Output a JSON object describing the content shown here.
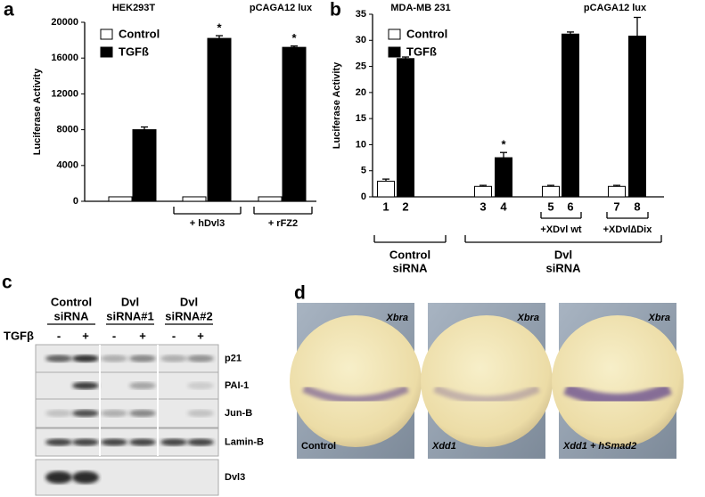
{
  "panels": [
    "a",
    "b",
    "c",
    "d"
  ],
  "chart_data": [
    {
      "type": "bar",
      "titles": [
        "HEK293T",
        "pCAGA12 lux"
      ],
      "y_label": "Luciferase Activity",
      "ylim": [
        0,
        20000
      ],
      "yticks": [
        0,
        4000,
        8000,
        12000,
        16000,
        20000
      ],
      "group_labels": [
        null,
        "+ hDvl3",
        "+ rFZ2"
      ],
      "series": [
        {
          "name": "Control",
          "color": "#ffffff",
          "values": [
            500,
            500,
            500
          ]
        },
        {
          "name": "TGFß",
          "color": "#000000",
          "values": [
            8000,
            18200,
            17200
          ],
          "errors": [
            300,
            300,
            150
          ],
          "significance": [
            null,
            "*",
            "*"
          ]
        }
      ]
    },
    {
      "type": "bar",
      "titles": [
        "MDA-MB 231",
        "pCAGA12 lux"
      ],
      "y_label": "Luciferase Activity",
      "ylim": [
        0,
        35
      ],
      "yticks": [
        0,
        5,
        10,
        15,
        20,
        25,
        30,
        35
      ],
      "categories": [
        "1",
        "2",
        "3",
        "4",
        "5",
        "6",
        "7",
        "8"
      ],
      "rescue_labels": [
        "+XDvl wt",
        "+XDvl∆Dix"
      ],
      "siRNA_labels": [
        [
          "Control",
          "siRNA"
        ],
        [
          "Dvl",
          "siRNA"
        ]
      ],
      "series": [
        {
          "name": "Control",
          "color": "#ffffff",
          "values": [
            3,
            null,
            2,
            null,
            2,
            null,
            2,
            null
          ],
          "errors": [
            0.4,
            null,
            0.2,
            null,
            0.2,
            null,
            0.2,
            null
          ]
        },
        {
          "name": "TGFß",
          "color": "#000000",
          "values": [
            null,
            26.5,
            null,
            7.5,
            null,
            31.2,
            null,
            30.8
          ],
          "errors": [
            null,
            0.3,
            null,
            1,
            null,
            0.4,
            null,
            3.6
          ],
          "significance": [
            null,
            null,
            null,
            "*",
            null,
            null,
            null,
            null
          ]
        }
      ]
    }
  ],
  "blot": {
    "header": [
      [
        "Control",
        "siRNA"
      ],
      [
        "Dvl",
        "siRNA#1"
      ],
      [
        "Dvl",
        "siRNA#2"
      ]
    ],
    "treatment": "TGFβ",
    "signs": [
      "-",
      "+",
      "-",
      "+",
      "-",
      "+"
    ],
    "rows": [
      "p21",
      "PAI-1",
      "Jun-B",
      "Lamin-B",
      "Dvl3"
    ]
  },
  "embryos": [
    {
      "gene": "Xbra",
      "condition": "Control"
    },
    {
      "gene": "Xbra",
      "condition": "Xdd1"
    },
    {
      "gene": "Xbra",
      "condition": "Xdd1 + hSmad2"
    }
  ]
}
